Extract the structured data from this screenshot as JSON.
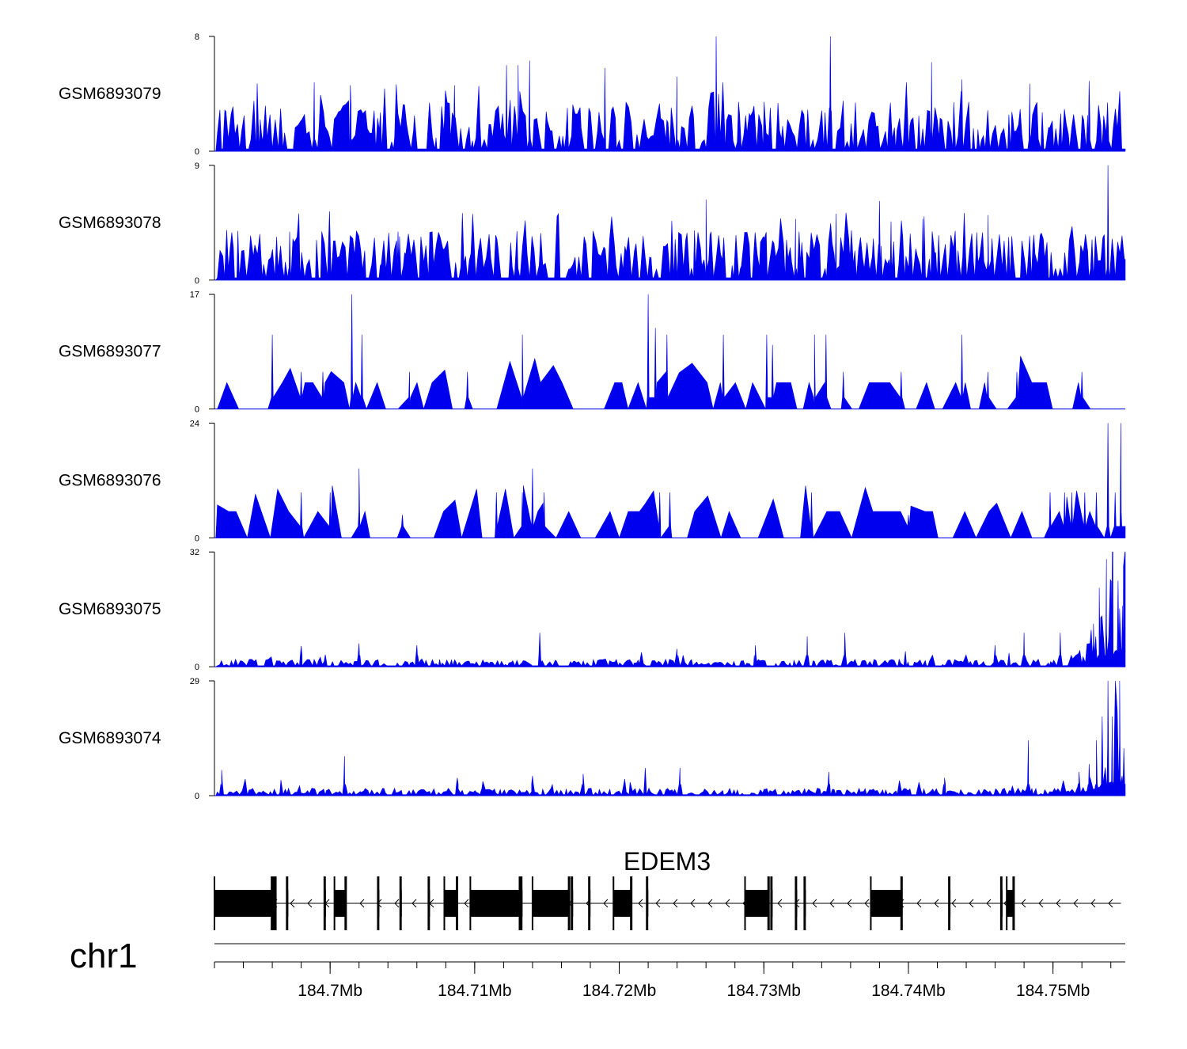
{
  "chart_data": {
    "type": "area",
    "chromosome": "chr1",
    "x_range": [
      184692000,
      184755000
    ],
    "x_ticks": [
      {
        "pos": 184700000,
        "label": "184.7Mb"
      },
      {
        "pos": 184710000,
        "label": "184.71Mb"
      },
      {
        "pos": 184720000,
        "label": "184.72Mb"
      },
      {
        "pos": 184730000,
        "label": "184.73Mb"
      },
      {
        "pos": 184740000,
        "label": "184.74Mb"
      },
      {
        "pos": 184750000,
        "label": "184.75Mb"
      }
    ],
    "minor_tick_step": 2000,
    "color": "#0000ee",
    "tracks": [
      {
        "name": "GSM6893079",
        "ylim": [
          0,
          8
        ],
        "ymax_label": "8",
        "ymin_label": "0",
        "profile": "uniform",
        "peaks": [
          [
            184712200,
            6.0
          ],
          [
            184713000,
            6.0
          ],
          [
            184713800,
            6.3
          ],
          [
            184719000,
            5.8
          ],
          [
            184724000,
            5.2
          ],
          [
            184726700,
            8.0
          ],
          [
            184734600,
            8.0
          ],
          [
            184741600,
            6.2
          ],
          [
            184743700,
            5.0
          ],
          [
            184752500,
            4.9
          ],
          [
            184748400,
            4.7
          ],
          [
            184698900,
            4.8
          ],
          [
            184701400,
            4.6
          ],
          [
            184708600,
            4.6
          ]
        ]
      },
      {
        "name": "GSM6893078",
        "ylim": [
          0,
          9
        ],
        "ymax_label": "9",
        "ymin_label": "0",
        "profile": "uniform",
        "peaks": [
          [
            184726000,
            6.3
          ],
          [
            184738000,
            6.2
          ],
          [
            184735000,
            5.2
          ],
          [
            184732200,
            4.8
          ],
          [
            184745500,
            5.1
          ],
          [
            184753800,
            9.0
          ],
          [
            184725200,
            3.9
          ],
          [
            184738800,
            4.6
          ],
          [
            184741000,
            4.8
          ],
          [
            184697200,
            3.8
          ],
          [
            184704700,
            3.8
          ],
          [
            184745500,
            5.0
          ]
        ]
      },
      {
        "name": "GSM6893077",
        "ylim": [
          0,
          17
        ],
        "ymax_label": "17",
        "ymin_label": "0",
        "profile": "sparse",
        "peaks": [
          [
            184696000,
            11.0
          ],
          [
            184698000,
            5.5
          ],
          [
            184699500,
            5.5
          ],
          [
            184701500,
            17.0
          ],
          [
            184702200,
            11.0
          ],
          [
            184705500,
            5.5
          ],
          [
            184709500,
            5.5
          ],
          [
            184713300,
            11.0
          ],
          [
            184722000,
            17.0
          ],
          [
            184722500,
            12.0
          ],
          [
            184723300,
            11.0
          ],
          [
            184727200,
            11.0
          ],
          [
            184730200,
            11.0
          ],
          [
            184730600,
            9.5
          ],
          [
            184733500,
            11.0
          ],
          [
            184734300,
            11.0
          ],
          [
            184735500,
            5.5
          ],
          [
            184739500,
            5.5
          ],
          [
            184743700,
            11.0
          ],
          [
            184745500,
            5.5
          ],
          [
            184747500,
            5.5
          ],
          [
            184752000,
            5.5
          ]
        ]
      },
      {
        "name": "GSM6893076",
        "ylim": [
          0,
          24
        ],
        "ymax_label": "24",
        "ymin_label": "0",
        "profile": "sparse",
        "peaks": [
          [
            184698000,
            9.5
          ],
          [
            184700000,
            9.5
          ],
          [
            184702000,
            14.5
          ],
          [
            184705000,
            4.8
          ],
          [
            184711500,
            9.5
          ],
          [
            184713300,
            9.5
          ],
          [
            184714000,
            14.5
          ],
          [
            184714800,
            9.5
          ],
          [
            184722800,
            9.5
          ],
          [
            184723500,
            9.5
          ],
          [
            184733300,
            9.5
          ],
          [
            184740000,
            4.8
          ],
          [
            184749800,
            9.5
          ],
          [
            184750800,
            9.5
          ],
          [
            184751300,
            9.5
          ],
          [
            184752200,
            9.5
          ],
          [
            184753000,
            9.5
          ],
          [
            184753800,
            24.0
          ],
          [
            184754700,
            24.0
          ],
          [
            184754300,
            9.5
          ]
        ]
      },
      {
        "name": "GSM6893075",
        "ylim": [
          0,
          32
        ],
        "ymax_label": "32",
        "ymin_label": "0",
        "profile": "rising",
        "peaks": [
          [
            184698000,
            5.8
          ],
          [
            184702000,
            6.5
          ],
          [
            184706000,
            6.0
          ],
          [
            184714500,
            9.5
          ],
          [
            184724000,
            5.0
          ],
          [
            184729400,
            6.0
          ],
          [
            184733000,
            8.5
          ],
          [
            184735600,
            9.5
          ],
          [
            184746000,
            6.0
          ],
          [
            184748000,
            9.5
          ],
          [
            184750500,
            9.5
          ],
          [
            184753200,
            22.0
          ],
          [
            184753700,
            30.0
          ],
          [
            184754100,
            32.0
          ],
          [
            184754500,
            24.0
          ],
          [
            184754800,
            17.0
          ],
          [
            184752800,
            12.0
          ]
        ]
      },
      {
        "name": "GSM6893074",
        "ylim": [
          0,
          29
        ],
        "ymax_label": "29",
        "ymin_label": "0",
        "profile": "rising",
        "peaks": [
          [
            184692500,
            6.5
          ],
          [
            184701000,
            10.0
          ],
          [
            184708800,
            4.5
          ],
          [
            184714000,
            5.0
          ],
          [
            184717500,
            5.5
          ],
          [
            184721800,
            7.0
          ],
          [
            184724200,
            7.0
          ],
          [
            184734500,
            6.0
          ],
          [
            184742500,
            4.5
          ],
          [
            184748300,
            14.0
          ],
          [
            184751800,
            6.0
          ],
          [
            184752500,
            8.0
          ],
          [
            184753000,
            14.0
          ],
          [
            184753400,
            20.0
          ],
          [
            184753800,
            29.0
          ],
          [
            184754100,
            20.0
          ],
          [
            184754600,
            14.0
          ],
          [
            184754900,
            12.0
          ]
        ]
      }
    ],
    "gene": {
      "name": "EDEM3",
      "strand": "-",
      "start": 184692000,
      "end": 184754700,
      "exons": [
        [
          184692000,
          184695950
        ],
        [
          184697000,
          184697050
        ],
        [
          184699600,
          184699650
        ],
        [
          184700300,
          184701050
        ],
        [
          184703300,
          184703350
        ],
        [
          184704850,
          184704900
        ],
        [
          184706800,
          184706850
        ],
        [
          184707900,
          184708750
        ],
        [
          184709700,
          184713100
        ],
        [
          184713200,
          184713250
        ],
        [
          184714000,
          184716500
        ],
        [
          184716700,
          184716750
        ],
        [
          184717900,
          184717950
        ],
        [
          184719600,
          184720800
        ],
        [
          184721900,
          184721950
        ],
        [
          184728700,
          184730300
        ],
        [
          184730500,
          184730550
        ],
        [
          184732200,
          184732250
        ],
        [
          184732800,
          184732850
        ],
        [
          184737400,
          184739500
        ],
        [
          184742800,
          184742850
        ],
        [
          184746400,
          184746450
        ],
        [
          184746800,
          184747250
        ]
      ],
      "utr_narrow": [
        [
          184732300,
          184732700
        ]
      ],
      "thick_bars": [
        [
          184695950,
          184696300
        ],
        [
          184701050,
          184701150
        ],
        [
          184708750,
          184708800
        ],
        [
          184716500,
          184716600
        ],
        [
          184720800,
          184720850
        ],
        [
          184730300,
          184730350
        ],
        [
          184739500,
          184739600
        ],
        [
          184747250,
          184747300
        ]
      ]
    }
  }
}
